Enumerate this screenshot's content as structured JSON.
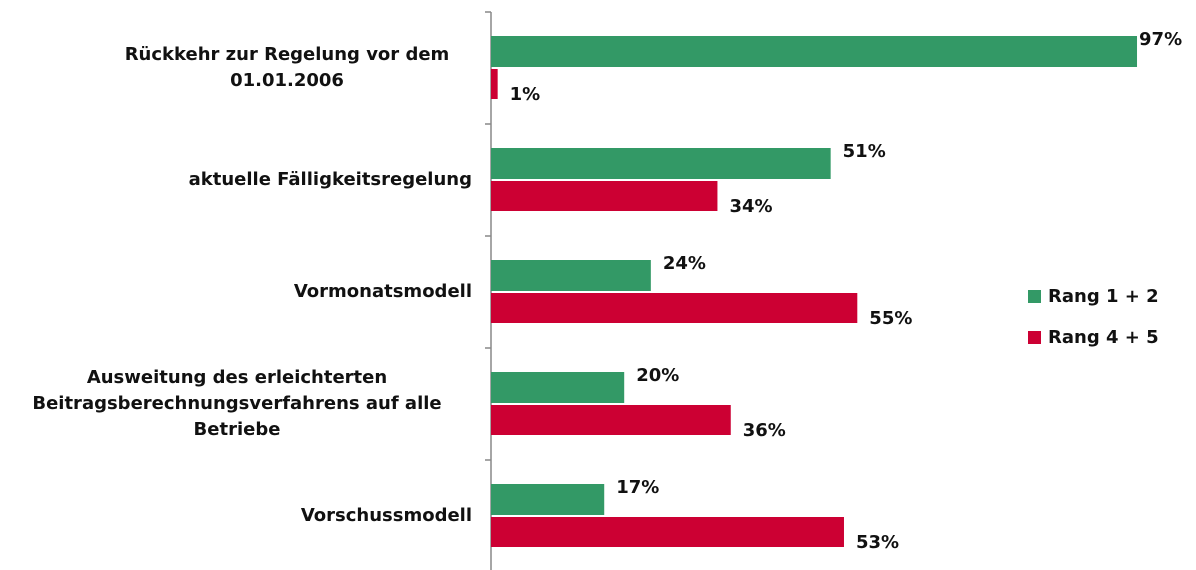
{
  "chart_data": {
    "type": "bar",
    "orientation": "horizontal",
    "categories": [
      "Rückkehr zur Regelung vor dem 01.01.2006",
      "aktuelle Fälligkeitsregelung",
      "Vormonatsmodell",
      "Ausweitung des erleichterten Beitragsberechnungsverfahrens auf alle Betriebe",
      "Vorschussmodell"
    ],
    "series": [
      {
        "name": "Rang 1 + 2",
        "color": "#339966",
        "values": [
          97,
          51,
          24,
          20,
          17
        ],
        "value_labels": [
          "97%",
          "51%",
          "24%",
          "20%",
          "17%"
        ]
      },
      {
        "name": "Rang 4 + 5",
        "color": "#cc0033",
        "values": [
          1,
          34,
          55,
          36,
          53
        ],
        "value_labels": [
          "1%",
          "34%",
          "55%",
          "36%",
          "53%"
        ]
      }
    ],
    "legend": "right"
  }
}
